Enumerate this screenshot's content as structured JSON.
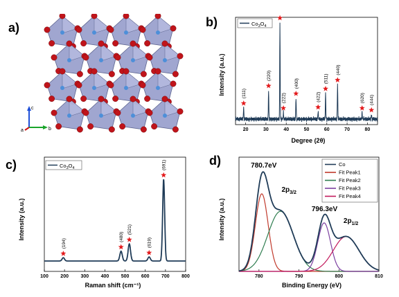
{
  "panels": {
    "a": "a)",
    "b": "b)",
    "c": "c)",
    "d": "d)"
  },
  "crystal_axes": {
    "c": "c",
    "a": "a",
    "b": "b"
  },
  "colors": {
    "series": "#1f3b57",
    "star": "#e31a1c",
    "fit1": "#c0392b",
    "fit2": "#2e7d4f",
    "fit3": "#7b3fa0",
    "fit4": "#c2185b",
    "octahedron": "#8f96c8",
    "atom": "#c0141a"
  },
  "chart_data": [
    {
      "id": "b",
      "type": "line",
      "legend": "Co3O4",
      "legend_parts": {
        "base": "Co",
        "s1": "3",
        "mid": "O",
        "s2": "4"
      },
      "xlabel": "Degree (2θ)",
      "ylabel": "Intensity (a.u.)",
      "xlim": [
        15,
        85
      ],
      "xticks": [
        20,
        30,
        40,
        50,
        60,
        70,
        80
      ],
      "grid": false,
      "legend_position": "top-left",
      "peaks": [
        {
          "x": 19.0,
          "h": 0.12,
          "label": "(111)"
        },
        {
          "x": 31.3,
          "h": 0.3,
          "label": "(220)"
        },
        {
          "x": 36.9,
          "h": 1.0,
          "label": "(311)"
        },
        {
          "x": 38.6,
          "h": 0.07,
          "label": "(222)"
        },
        {
          "x": 44.8,
          "h": 0.22,
          "label": "(400)"
        },
        {
          "x": 55.7,
          "h": 0.08,
          "label": "(422)"
        },
        {
          "x": 59.4,
          "h": 0.27,
          "label": "(511)"
        },
        {
          "x": 65.3,
          "h": 0.36,
          "label": "(440)"
        },
        {
          "x": 77.4,
          "h": 0.07,
          "label": "(620)"
        },
        {
          "x": 82.0,
          "h": 0.05,
          "label": "(444)"
        }
      ]
    },
    {
      "id": "c",
      "type": "line",
      "legend": "Co3O4",
      "legend_parts": {
        "base": "Co",
        "s1": "3",
        "mid": "O",
        "s2": "4"
      },
      "xlabel": "Raman shift (cm⁻¹)",
      "ylabel": "Intensity (a.u.)",
      "xlim": [
        100,
        800
      ],
      "xticks": [
        100,
        200,
        300,
        400,
        500,
        600,
        700,
        800
      ],
      "grid": false,
      "legend_position": "top-left",
      "peaks": [
        {
          "x": 194,
          "h": 0.04,
          "label": "(194)"
        },
        {
          "x": 480,
          "h": 0.12,
          "label": "(480)"
        },
        {
          "x": 521,
          "h": 0.21,
          "label": "(521)"
        },
        {
          "x": 619,
          "h": 0.05,
          "label": "(619)"
        },
        {
          "x": 691,
          "h": 1.0,
          "label": "(691)"
        }
      ]
    },
    {
      "id": "d",
      "type": "line",
      "xlabel": "Binding Energy (eV)",
      "ylabel": "Intensity (a.u.)",
      "xlim": [
        775,
        810
      ],
      "xticks": [
        780,
        790,
        800,
        810
      ],
      "grid": false,
      "legend_position": "top-right",
      "series": [
        {
          "name": "Co"
        },
        {
          "name": "Fit Peak1",
          "center": 780.7,
          "height": 0.8,
          "width": 1.6
        },
        {
          "name": "Fit Peak2",
          "center": 785.4,
          "height": 0.62,
          "width": 3.2
        },
        {
          "name": "Fit Peak3",
          "center": 796.3,
          "height": 0.5,
          "width": 1.6
        },
        {
          "name": "Fit Peak4",
          "center": 801.8,
          "height": 0.36,
          "width": 3.2
        }
      ],
      "annotations": [
        {
          "text": "780.7eV",
          "x": 781.2,
          "y": 1.07
        },
        {
          "base": "2p",
          "sub": "3/2",
          "x": 787.5,
          "y": 0.82
        },
        {
          "text": "796.3eV",
          "x": 796.4,
          "y": 0.62
        },
        {
          "base": "2p",
          "sub": "1/2",
          "x": 803.0,
          "y": 0.5
        }
      ]
    }
  ]
}
